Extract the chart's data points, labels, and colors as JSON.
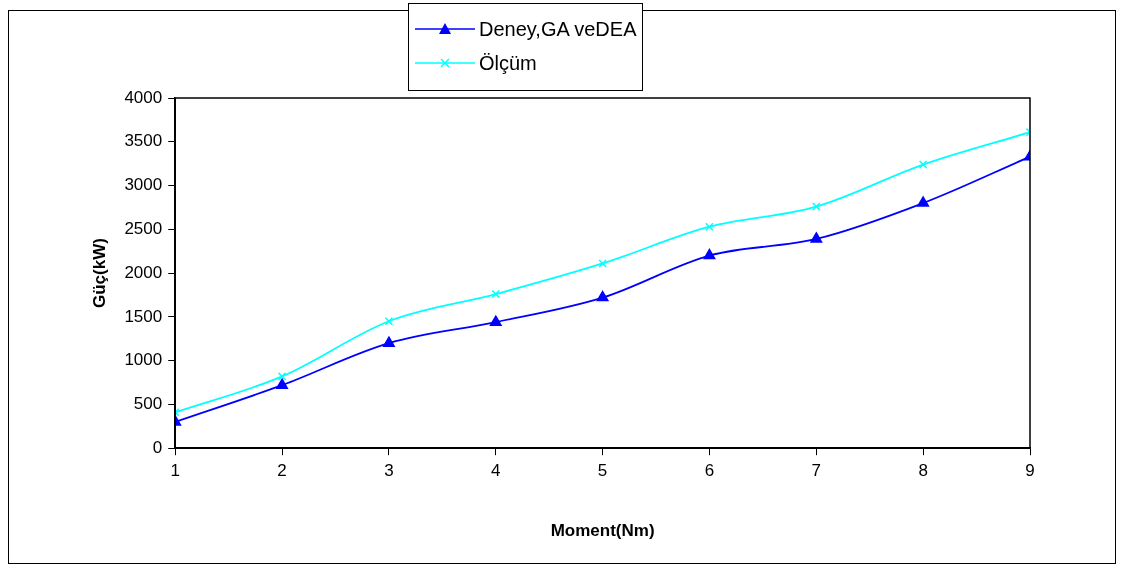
{
  "chart_data": {
    "type": "line",
    "xlabel": "Moment(Nm)",
    "ylabel": "Güç(kW)",
    "x": [
      1,
      2,
      3,
      4,
      5,
      6,
      7,
      8,
      9
    ],
    "xlim": [
      1,
      9
    ],
    "xticks": [
      1,
      2,
      3,
      4,
      5,
      6,
      7,
      8,
      9
    ],
    "ylim": [
      0,
      4000
    ],
    "yticks": [
      0,
      500,
      1000,
      1500,
      2000,
      2500,
      3000,
      3500,
      4000
    ],
    "legend": "top",
    "line_style": "solid",
    "series": [
      {
        "name": "Deney,GA veDEA",
        "color": "#0000ff",
        "marker": "triangle",
        "values": [
          300,
          720,
          1200,
          1440,
          1720,
          2200,
          2390,
          2800,
          3330
        ]
      },
      {
        "name": "Ölçüm",
        "color": "#00ffff",
        "marker": "cross",
        "values": [
          410,
          820,
          1450,
          1760,
          2110,
          2530,
          2760,
          3240,
          3610
        ]
      }
    ]
  }
}
